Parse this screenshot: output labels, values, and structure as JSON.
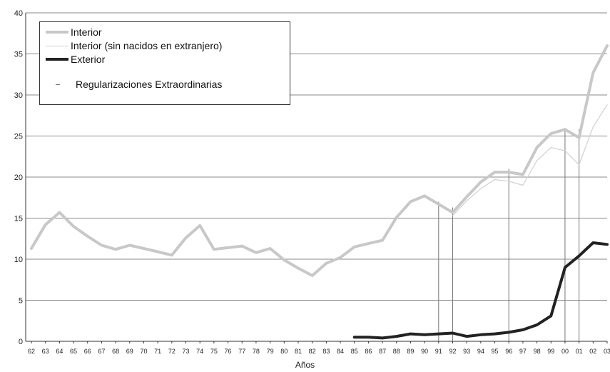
{
  "chart_data": {
    "type": "line",
    "title": "",
    "xlabel": "Años",
    "ylabel": "",
    "ylim": [
      0,
      40
    ],
    "yticks": [
      0,
      5,
      10,
      15,
      20,
      25,
      30,
      35,
      40
    ],
    "grid": true,
    "legend_position": "top-left",
    "categories": [
      "62",
      "63",
      "64",
      "65",
      "66",
      "67",
      "68",
      "69",
      "70",
      "71",
      "72",
      "73",
      "74",
      "75",
      "76",
      "77",
      "78",
      "79",
      "80",
      "81",
      "82",
      "83",
      "84",
      "85",
      "86",
      "87",
      "88",
      "89",
      "90",
      "91",
      "92",
      "93",
      "94",
      "95",
      "96",
      "97",
      "98",
      "99",
      "00",
      "01",
      "02",
      "03"
    ],
    "series": [
      {
        "name": "Interior",
        "color": "#c8c8c8",
        "values": [
          11.3,
          14.2,
          15.7,
          14.0,
          12.8,
          11.7,
          11.2,
          11.7,
          11.3,
          10.9,
          10.5,
          12.6,
          14.1,
          11.2,
          11.4,
          11.6,
          10.8,
          11.3,
          9.9,
          8.9,
          8.0,
          9.5,
          10.2,
          11.5,
          11.9,
          12.3,
          15.1,
          17.0,
          17.7,
          16.7,
          15.7,
          17.6,
          19.4,
          20.6,
          20.6,
          20.3,
          23.6,
          25.3,
          25.8,
          24.8,
          32.7,
          36.0
        ]
      },
      {
        "name": "Interior (sin nacidos en extranjero)",
        "color": "#d0d0d0",
        "values": [
          null,
          null,
          null,
          null,
          null,
          null,
          null,
          null,
          null,
          null,
          null,
          null,
          null,
          null,
          null,
          null,
          null,
          null,
          null,
          null,
          null,
          null,
          null,
          null,
          null,
          null,
          null,
          null,
          null,
          null,
          15.3,
          17.1,
          18.6,
          19.7,
          19.5,
          19.0,
          22.0,
          23.6,
          23.2,
          21.5,
          26.1,
          28.8
        ]
      },
      {
        "name": "Exterior",
        "color": "#222222",
        "values": [
          null,
          null,
          null,
          null,
          null,
          null,
          null,
          null,
          null,
          null,
          null,
          null,
          null,
          null,
          null,
          null,
          null,
          null,
          null,
          null,
          null,
          null,
          null,
          0.5,
          0.5,
          0.4,
          0.6,
          0.9,
          0.8,
          0.9,
          1.0,
          0.6,
          0.8,
          0.9,
          1.1,
          1.4,
          2.0,
          3.1,
          9.0,
          10.4,
          12.0,
          11.8
        ]
      }
    ],
    "regularizaciones": {
      "name": "Regularizaciones Extraordinarias",
      "color": "#777777",
      "years": [
        "91",
        "92",
        "96",
        "00",
        "01"
      ],
      "tops": [
        17.0,
        16.3,
        21.0,
        26.0,
        25.8
      ]
    }
  }
}
